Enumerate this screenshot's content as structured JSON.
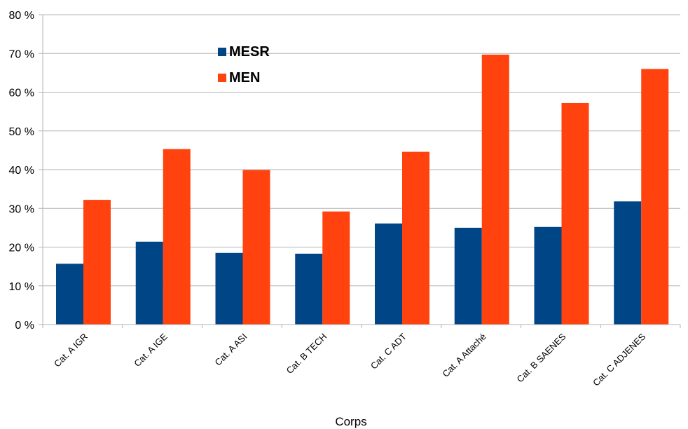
{
  "chart_data": {
    "type": "bar",
    "xlabel": "Corps",
    "ylabel": "",
    "ylim": [
      0,
      80
    ],
    "y_ticks": [
      "0 %",
      "10 %",
      "20 %",
      "30 %",
      "40 %",
      "50 %",
      "60 %",
      "70 %",
      "80 %"
    ],
    "grid": true,
    "legend_position": "top-left",
    "categories": [
      "Cat. A IGR",
      "Cat. A IGE",
      "Cat. A ASI",
      "Cat. B TECH",
      "Cat. C ADT",
      "Cat. A Attaché",
      "Cat. B SAENES",
      "Cat. C ADJENES"
    ],
    "series": [
      {
        "name": "MESR",
        "color": "#004586",
        "values": [
          15.7,
          21.4,
          18.5,
          18.3,
          26.1,
          25.0,
          25.2,
          31.8
        ]
      },
      {
        "name": "MEN",
        "color": "#ff420e",
        "values": [
          32.2,
          45.3,
          39.9,
          29.2,
          44.6,
          69.7,
          57.2,
          66.0
        ]
      }
    ]
  }
}
